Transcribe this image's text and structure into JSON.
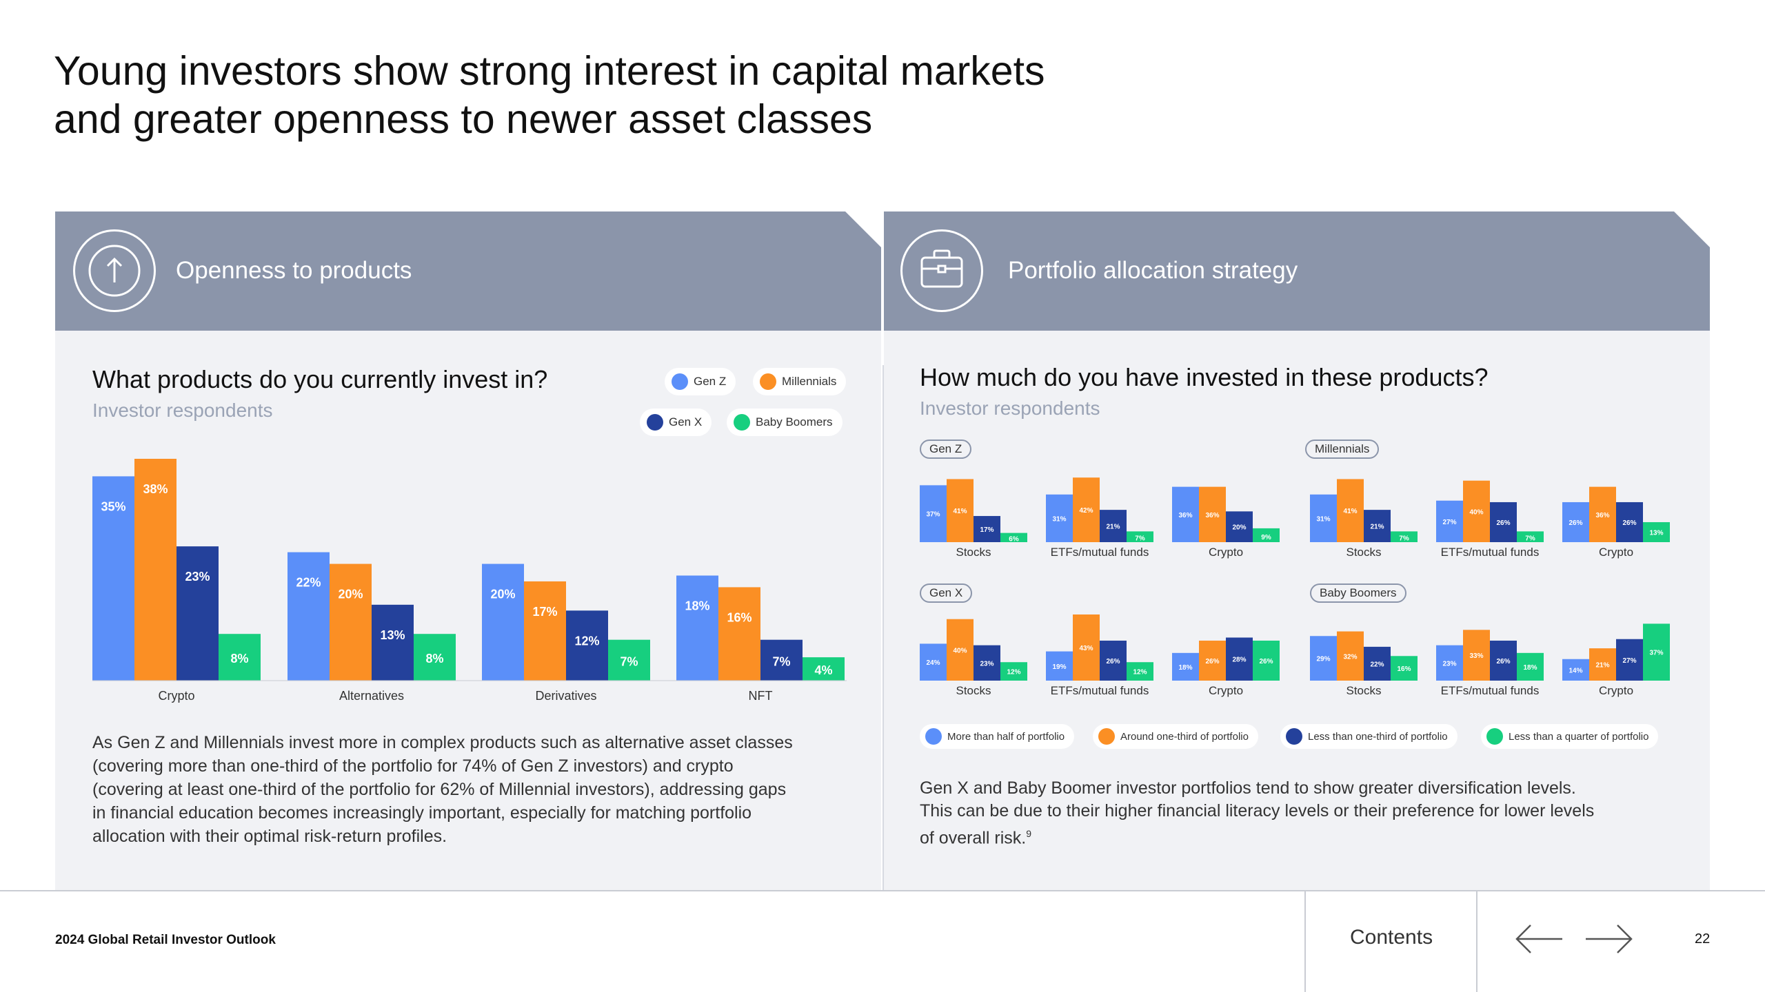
{
  "title": {
    "line1": "Young investors show strong interest in capital markets",
    "line2": "and greater openness to newer asset classes"
  },
  "colors": {
    "gen_z": "#5b8ff9",
    "millennials": "#fb8f24",
    "gen_x": "#24419b",
    "baby_boomers": "#17cf7f",
    "header_bg": "#8b95aa",
    "panel_bg": "#f1f2f5"
  },
  "left_panel": {
    "header": "Openness to products",
    "icon": "arrow-up-icon",
    "chart_title": "What products do you currently invest in?",
    "subtitle": "Investor respondents",
    "legend": [
      "Gen Z",
      "Millennials",
      "Gen X",
      "Baby Boomers"
    ],
    "body": [
      "As Gen Z and Millennials invest more in complex products such as alternative asset classes",
      "(covering more than one-third of the portfolio for 74% of Gen Z investors) and crypto",
      "(covering at least one-third of the portfolio for 62% of Millennial investors), addressing gaps",
      "in financial education becomes increasingly important, especially for matching portfolio",
      "allocation with their optimal risk-return profiles."
    ]
  },
  "right_panel": {
    "header": "Portfolio allocation strategy",
    "icon": "briefcase-icon",
    "chart_title": "How much do you have invested in these products?",
    "subtitle": "Investor respondents",
    "legend": [
      "More than half of portfolio",
      "Around one-third of portfolio",
      "Less than one-third of portfolio",
      "Less than a quarter of portfolio"
    ],
    "body": [
      "Gen X and Baby Boomer investor portfolios tend to show greater diversification levels.",
      "This can be due to their higher financial literacy levels or their preference for lower levels",
      "of overall risk."
    ],
    "footnote": "9"
  },
  "chart_data": [
    {
      "type": "bar",
      "title": "What products do you currently invest in?",
      "subtitle": "Investor respondents",
      "categories": [
        "Crypto",
        "Alternatives",
        "Derivatives",
        "NFT"
      ],
      "series": [
        {
          "name": "Gen Z",
          "values": [
            35,
            22,
            20,
            18
          ]
        },
        {
          "name": "Millennials",
          "values": [
            38,
            20,
            17,
            16
          ]
        },
        {
          "name": "Gen X",
          "values": [
            23,
            13,
            12,
            7
          ]
        },
        {
          "name": "Baby Boomers",
          "values": [
            8,
            8,
            7,
            4
          ]
        }
      ],
      "value_suffix": "%",
      "ylim": [
        0,
        38
      ],
      "grid": false,
      "legend": "top-right"
    },
    {
      "type": "bar",
      "title": "How much do you have invested in these products?",
      "subtitle": "Investor respondents",
      "series_names": [
        "More than half of portfolio",
        "Around one-third of portfolio",
        "Less than one-third of portfolio",
        "Less than a quarter of portfolio"
      ],
      "value_suffix": "%",
      "ylim": [
        0,
        43
      ],
      "grid": false,
      "legend": "bottom",
      "panels": [
        {
          "group": "Gen Z",
          "categories": [
            "Stocks",
            "ETFs/mutual funds",
            "Crypto"
          ],
          "values": [
            [
              37,
              41,
              17,
              6
            ],
            [
              31,
              42,
              21,
              7
            ],
            [
              36,
              36,
              20,
              9
            ]
          ]
        },
        {
          "group": "Millennials",
          "categories": [
            "Stocks",
            "ETFs/mutual funds",
            "Crypto"
          ],
          "values": [
            [
              31,
              41,
              21,
              7
            ],
            [
              27,
              40,
              26,
              7
            ],
            [
              26,
              36,
              26,
              13
            ]
          ]
        },
        {
          "group": "Gen X",
          "categories": [
            "Stocks",
            "ETFs/mutual funds",
            "Crypto"
          ],
          "values": [
            [
              24,
              40,
              23,
              12
            ],
            [
              19,
              43,
              26,
              12
            ],
            [
              18,
              26,
              28,
              26
            ]
          ]
        },
        {
          "group": "Baby Boomers",
          "categories": [
            "Stocks",
            "ETFs/mutual funds",
            "Crypto"
          ],
          "values": [
            [
              29,
              32,
              22,
              16
            ],
            [
              23,
              33,
              26,
              18
            ],
            [
              14,
              21,
              27,
              37
            ]
          ]
        }
      ]
    }
  ],
  "footer": {
    "report": "2024 Global Retail Investor Outlook",
    "contents": "Contents",
    "page": "22",
    "prev_icon": "arrow-left-icon",
    "next_icon": "arrow-right-icon"
  }
}
